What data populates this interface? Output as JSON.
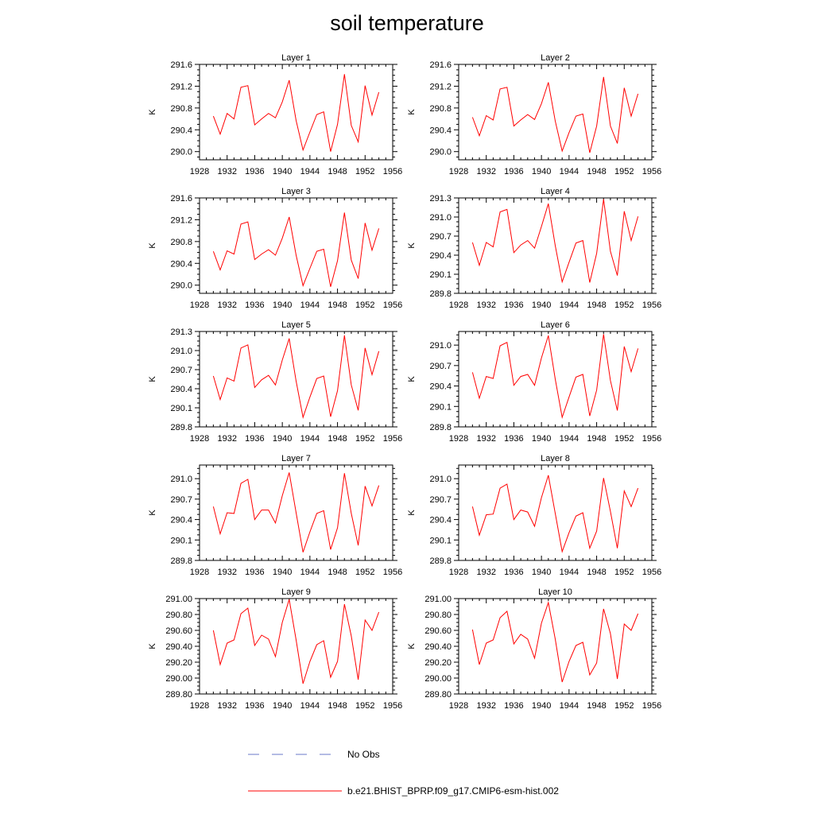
{
  "page_title": "soil temperature",
  "colors": {
    "model": "#ff0000",
    "obs": "#6a78c8",
    "axis": "#000000"
  },
  "legend": {
    "obs_label": "No Obs",
    "model_label": "b.e21.BHIST_BPRP.f09_g17.CMIP6-esm-hist.002"
  },
  "chart_data": [
    {
      "type": "line",
      "title": "Layer 1",
      "ylabel": "K",
      "xlim": [
        1928,
        1956
      ],
      "ylim": [
        289.85,
        291.6
      ],
      "xticks": [
        1928,
        1932,
        1936,
        1940,
        1944,
        1948,
        1952,
        1956
      ],
      "yticks": [
        290.0,
        290.4,
        290.8,
        291.2,
        291.6
      ],
      "ytick_labels": [
        "290.0",
        "290.4",
        "290.8",
        "291.2",
        "291.6"
      ],
      "x": [
        1930,
        1931,
        1932,
        1933,
        1934,
        1935,
        1936,
        1937,
        1938,
        1939,
        1940,
        1941,
        1942,
        1943,
        1944,
        1945,
        1946,
        1947,
        1948,
        1949,
        1950,
        1951,
        1952,
        1953,
        1954
      ],
      "series": [
        {
          "values": [
            290.65,
            290.32,
            290.7,
            290.6,
            291.18,
            291.21,
            290.49,
            290.6,
            290.7,
            290.62,
            290.91,
            291.31,
            290.57,
            290.03,
            290.36,
            290.68,
            290.73,
            290.0,
            290.5,
            291.42,
            290.48,
            290.18,
            291.21,
            290.67,
            291.09
          ]
        }
      ]
    },
    {
      "type": "line",
      "title": "Layer 2",
      "ylabel": "K",
      "xlim": [
        1928,
        1956
      ],
      "ylim": [
        289.85,
        291.6
      ],
      "xticks": [
        1928,
        1932,
        1936,
        1940,
        1944,
        1948,
        1952,
        1956
      ],
      "yticks": [
        290.0,
        290.4,
        290.8,
        291.2,
        291.6
      ],
      "ytick_labels": [
        "290.0",
        "290.4",
        "290.8",
        "291.2",
        "291.6"
      ],
      "x": [
        1930,
        1931,
        1932,
        1933,
        1934,
        1935,
        1936,
        1937,
        1938,
        1939,
        1940,
        1941,
        1942,
        1943,
        1944,
        1945,
        1946,
        1947,
        1948,
        1949,
        1950,
        1951,
        1952,
        1953,
        1954
      ],
      "series": [
        {
          "values": [
            290.63,
            290.29,
            290.66,
            290.58,
            291.15,
            291.18,
            290.47,
            290.58,
            290.68,
            290.59,
            290.88,
            291.27,
            290.56,
            290.01,
            290.35,
            290.65,
            290.69,
            289.98,
            290.47,
            291.37,
            290.47,
            290.15,
            291.17,
            290.65,
            291.06
          ]
        }
      ]
    },
    {
      "type": "line",
      "title": "Layer 3",
      "ylabel": "K",
      "xlim": [
        1928,
        1956
      ],
      "ylim": [
        289.85,
        291.6
      ],
      "xticks": [
        1928,
        1932,
        1936,
        1940,
        1944,
        1948,
        1952,
        1956
      ],
      "yticks": [
        290.0,
        290.4,
        290.8,
        291.2,
        291.6
      ],
      "ytick_labels": [
        "290.0",
        "290.4",
        "290.8",
        "291.2",
        "291.6"
      ],
      "x": [
        1930,
        1931,
        1932,
        1933,
        1934,
        1935,
        1936,
        1937,
        1938,
        1939,
        1940,
        1941,
        1942,
        1943,
        1944,
        1945,
        1946,
        1947,
        1948,
        1949,
        1950,
        1951,
        1952,
        1953,
        1954
      ],
      "series": [
        {
          "values": [
            290.62,
            290.28,
            290.63,
            290.57,
            291.12,
            291.16,
            290.47,
            290.57,
            290.65,
            290.55,
            290.86,
            291.25,
            290.55,
            289.99,
            290.31,
            290.62,
            290.66,
            289.97,
            290.45,
            291.33,
            290.46,
            290.12,
            291.14,
            290.64,
            291.04
          ]
        }
      ]
    },
    {
      "type": "line",
      "title": "Layer 4",
      "ylabel": "K",
      "xlim": [
        1928,
        1956
      ],
      "ylim": [
        289.8,
        291.3
      ],
      "xticks": [
        1928,
        1932,
        1936,
        1940,
        1944,
        1948,
        1952,
        1956
      ],
      "yticks": [
        289.8,
        290.1,
        290.4,
        290.7,
        291.0,
        291.3
      ],
      "ytick_labels": [
        "289.8",
        "290.1",
        "290.4",
        "290.7",
        "291.0",
        "291.3"
      ],
      "x": [
        1930,
        1931,
        1932,
        1933,
        1934,
        1935,
        1936,
        1937,
        1938,
        1939,
        1940,
        1941,
        1942,
        1943,
        1944,
        1945,
        1946,
        1947,
        1948,
        1949,
        1950,
        1951,
        1952,
        1953,
        1954
      ],
      "series": [
        {
          "values": [
            290.6,
            290.24,
            290.6,
            290.53,
            291.08,
            291.12,
            290.44,
            290.56,
            290.63,
            290.51,
            290.85,
            291.21,
            290.55,
            289.98,
            290.29,
            290.59,
            290.63,
            289.97,
            290.43,
            291.28,
            290.46,
            290.08,
            291.09,
            290.63,
            291.01
          ]
        }
      ]
    },
    {
      "type": "line",
      "title": "Layer 5",
      "ylabel": "K",
      "xlim": [
        1928,
        1956
      ],
      "ylim": [
        289.8,
        291.3
      ],
      "xticks": [
        1928,
        1932,
        1936,
        1940,
        1944,
        1948,
        1952,
        1956
      ],
      "yticks": [
        289.8,
        290.1,
        290.4,
        290.7,
        291.0,
        291.3
      ],
      "ytick_labels": [
        "289.8",
        "290.1",
        "290.4",
        "290.7",
        "291.0",
        "291.3"
      ],
      "x": [
        1930,
        1931,
        1932,
        1933,
        1934,
        1935,
        1936,
        1937,
        1938,
        1939,
        1940,
        1941,
        1942,
        1943,
        1944,
        1945,
        1946,
        1947,
        1948,
        1949,
        1950,
        1951,
        1952,
        1953,
        1954
      ],
      "series": [
        {
          "values": [
            290.6,
            290.23,
            290.57,
            290.52,
            291.04,
            291.09,
            290.42,
            290.54,
            290.61,
            290.46,
            290.85,
            291.19,
            290.52,
            289.95,
            290.27,
            290.56,
            290.6,
            289.96,
            290.37,
            291.24,
            290.46,
            290.06,
            291.04,
            290.62,
            290.99
          ]
        }
      ]
    },
    {
      "type": "line",
      "title": "Layer 6",
      "ylabel": "K",
      "xlim": [
        1928,
        1956
      ],
      "ylim": [
        289.8,
        291.2
      ],
      "xticks": [
        1928,
        1932,
        1936,
        1940,
        1944,
        1948,
        1952,
        1956
      ],
      "yticks": [
        289.8,
        290.1,
        290.4,
        290.7,
        291.0
      ],
      "ytick_labels": [
        "289.8",
        "290.1",
        "290.4",
        "290.7",
        "291.0"
      ],
      "x": [
        1930,
        1931,
        1932,
        1933,
        1934,
        1935,
        1936,
        1937,
        1938,
        1939,
        1940,
        1941,
        1942,
        1943,
        1944,
        1945,
        1946,
        1947,
        1948,
        1949,
        1950,
        1951,
        1952,
        1953,
        1954
      ],
      "series": [
        {
          "values": [
            290.6,
            290.22,
            290.54,
            290.51,
            290.99,
            291.04,
            290.41,
            290.54,
            290.57,
            290.41,
            290.81,
            291.14,
            290.5,
            289.94,
            290.24,
            290.53,
            290.57,
            289.96,
            290.34,
            291.16,
            290.48,
            290.04,
            290.98,
            290.61,
            290.95
          ]
        }
      ]
    },
    {
      "type": "line",
      "title": "Layer 7",
      "ylabel": "K",
      "xlim": [
        1928,
        1956
      ],
      "ylim": [
        289.8,
        291.2
      ],
      "xticks": [
        1928,
        1932,
        1936,
        1940,
        1944,
        1948,
        1952,
        1956
      ],
      "yticks": [
        289.8,
        290.1,
        290.4,
        290.7,
        291.0
      ],
      "ytick_labels": [
        "289.8",
        "290.1",
        "290.4",
        "290.7",
        "291.0"
      ],
      "x": [
        1930,
        1931,
        1932,
        1933,
        1934,
        1935,
        1936,
        1937,
        1938,
        1939,
        1940,
        1941,
        1942,
        1943,
        1944,
        1945,
        1946,
        1947,
        1948,
        1949,
        1950,
        1951,
        1952,
        1953,
        1954
      ],
      "series": [
        {
          "values": [
            290.59,
            290.19,
            290.5,
            290.49,
            290.93,
            290.99,
            290.4,
            290.54,
            290.54,
            290.35,
            290.75,
            291.09,
            290.5,
            289.92,
            290.22,
            290.49,
            290.53,
            289.96,
            290.28,
            291.08,
            290.49,
            290.02,
            290.89,
            290.6,
            290.9
          ]
        }
      ]
    },
    {
      "type": "line",
      "title": "Layer 8",
      "ylabel": "K",
      "xlim": [
        1928,
        1956
      ],
      "ylim": [
        289.8,
        291.2
      ],
      "xticks": [
        1928,
        1932,
        1936,
        1940,
        1944,
        1948,
        1952,
        1956
      ],
      "yticks": [
        289.8,
        290.1,
        290.4,
        290.7,
        291.0
      ],
      "ytick_labels": [
        "289.8",
        "290.1",
        "290.4",
        "290.7",
        "291.0"
      ],
      "x": [
        1930,
        1931,
        1932,
        1933,
        1934,
        1935,
        1936,
        1937,
        1938,
        1939,
        1940,
        1941,
        1942,
        1943,
        1944,
        1945,
        1946,
        1947,
        1948,
        1949,
        1950,
        1951,
        1952,
        1953,
        1954
      ],
      "series": [
        {
          "values": [
            290.59,
            290.17,
            290.47,
            290.48,
            290.86,
            290.92,
            290.4,
            290.54,
            290.51,
            290.3,
            290.72,
            291.05,
            290.49,
            289.93,
            290.21,
            290.45,
            290.5,
            289.98,
            290.23,
            291.01,
            290.52,
            289.98,
            290.82,
            290.59,
            290.86
          ]
        }
      ]
    },
    {
      "type": "line",
      "title": "Layer 9",
      "ylabel": "K",
      "xlim": [
        1928,
        1956
      ],
      "ylim": [
        289.8,
        291.0
      ],
      "xticks": [
        1928,
        1932,
        1936,
        1940,
        1944,
        1948,
        1952,
        1956
      ],
      "yticks": [
        289.8,
        290.0,
        290.2,
        290.4,
        290.6,
        290.8,
        291.0
      ],
      "ytick_labels": [
        "289.80",
        "290.00",
        "290.20",
        "290.40",
        "290.60",
        "290.80",
        "291.00"
      ],
      "x": [
        1930,
        1931,
        1932,
        1933,
        1934,
        1935,
        1936,
        1937,
        1938,
        1939,
        1940,
        1941,
        1942,
        1943,
        1944,
        1945,
        1946,
        1947,
        1948,
        1949,
        1950,
        1951,
        1952,
        1953,
        1954
      ],
      "series": [
        {
          "values": [
            290.6,
            290.17,
            290.44,
            290.48,
            290.81,
            290.88,
            290.41,
            290.54,
            290.49,
            290.27,
            290.7,
            290.99,
            290.48,
            289.93,
            290.21,
            290.42,
            290.47,
            290.01,
            290.21,
            290.93,
            290.53,
            289.98,
            290.73,
            290.6,
            290.83
          ]
        }
      ]
    },
    {
      "type": "line",
      "title": "Layer 10",
      "ylabel": "K",
      "xlim": [
        1928,
        1956
      ],
      "ylim": [
        289.8,
        291.0
      ],
      "xticks": [
        1928,
        1932,
        1936,
        1940,
        1944,
        1948,
        1952,
        1956
      ],
      "yticks": [
        289.8,
        290.0,
        290.2,
        290.4,
        290.6,
        290.8,
        291.0
      ],
      "ytick_labels": [
        "289.80",
        "290.00",
        "290.20",
        "290.40",
        "290.60",
        "290.80",
        "291.00"
      ],
      "x": [
        1930,
        1931,
        1932,
        1933,
        1934,
        1935,
        1936,
        1937,
        1938,
        1939,
        1940,
        1941,
        1942,
        1943,
        1944,
        1945,
        1946,
        1947,
        1948,
        1949,
        1950,
        1951,
        1952,
        1953,
        1954
      ],
      "series": [
        {
          "values": [
            290.61,
            290.17,
            290.44,
            290.48,
            290.76,
            290.84,
            290.43,
            290.55,
            290.49,
            290.25,
            290.69,
            290.95,
            290.49,
            289.95,
            290.21,
            290.41,
            290.45,
            290.04,
            290.19,
            290.87,
            290.56,
            289.99,
            290.68,
            290.6,
            290.81
          ]
        }
      ]
    }
  ]
}
